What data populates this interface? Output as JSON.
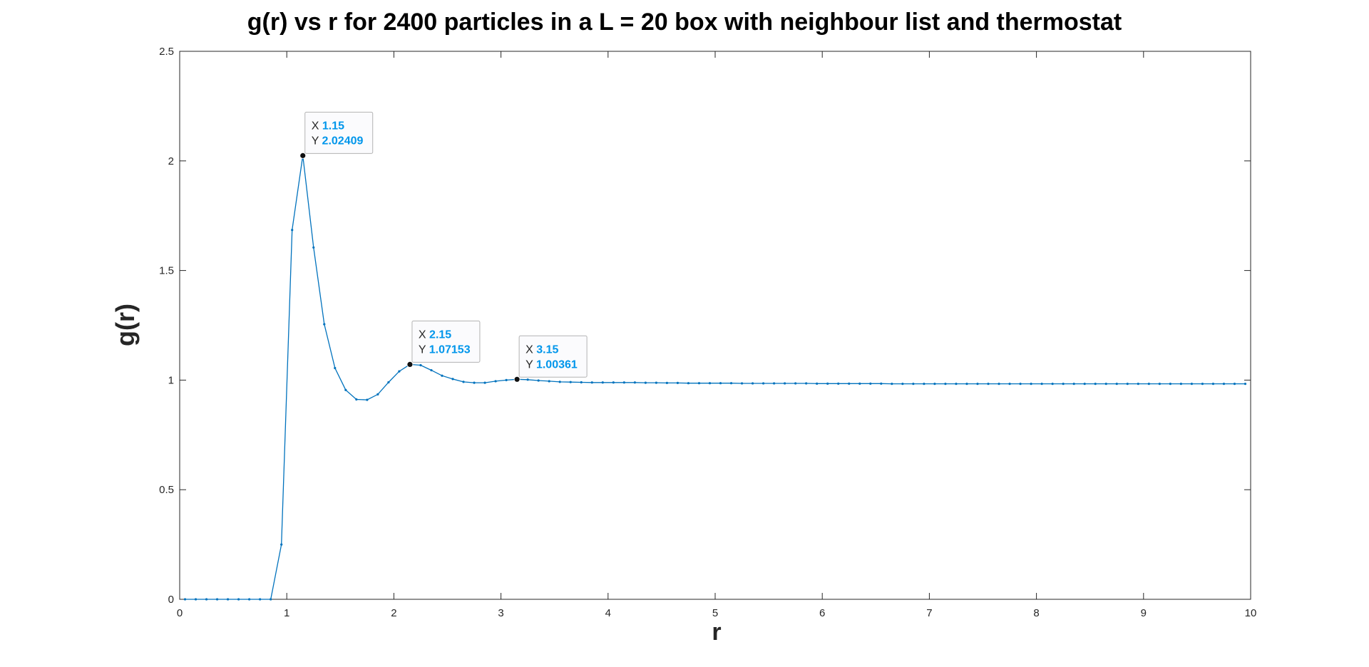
{
  "chart_data": {
    "type": "line",
    "title": "g(r) vs r for 2400 particles in a L = 20 box with neighbour list and thermostat",
    "xlabel": "r",
    "ylabel": "g(r)",
    "xlim": [
      0,
      10
    ],
    "ylim": [
      0,
      2.5
    ],
    "xticks": [
      "0",
      "1",
      "2",
      "3",
      "4",
      "5",
      "6",
      "7",
      "8",
      "9",
      "10"
    ],
    "yticks": [
      "0",
      "0.5",
      "1",
      "1.5",
      "2",
      "2.5"
    ],
    "grid": false,
    "legend": "none",
    "series_color": "#0072BD",
    "x": [
      0.05,
      0.15,
      0.25,
      0.35,
      0.45,
      0.55,
      0.65,
      0.75,
      0.85,
      0.95,
      1.05,
      1.15,
      1.25,
      1.35,
      1.45,
      1.55,
      1.65,
      1.75,
      1.85,
      1.95,
      2.05,
      2.15,
      2.25,
      2.35,
      2.45,
      2.55,
      2.65,
      2.75,
      2.85,
      2.95,
      3.05,
      3.15,
      3.25,
      3.35,
      3.45,
      3.55,
      3.65,
      3.75,
      3.85,
      3.95,
      4.05,
      4.15,
      4.25,
      4.35,
      4.45,
      4.55,
      4.65,
      4.75,
      4.85,
      4.95,
      5.05,
      5.15,
      5.25,
      5.35,
      5.45,
      5.55,
      5.65,
      5.75,
      5.85,
      5.95,
      6.05,
      6.15,
      6.25,
      6.35,
      6.45,
      6.55,
      6.65,
      6.75,
      6.85,
      6.95,
      7.05,
      7.15,
      7.25,
      7.35,
      7.45,
      7.55,
      7.65,
      7.75,
      7.85,
      7.95,
      8.05,
      8.15,
      8.25,
      8.35,
      8.45,
      8.55,
      8.65,
      8.75,
      8.85,
      8.95,
      9.05,
      9.15,
      9.25,
      9.35,
      9.45,
      9.55,
      9.65,
      9.75,
      9.85,
      9.95
    ],
    "y": [
      0,
      0,
      0,
      0,
      0,
      0,
      0,
      0,
      0,
      0.25,
      1.685,
      2.02409,
      1.605,
      1.255,
      1.055,
      0.955,
      0.912,
      0.91,
      0.935,
      0.99,
      1.04,
      1.07153,
      1.068,
      1.045,
      1.02,
      1.005,
      0.992,
      0.988,
      0.988,
      0.995,
      1.0,
      1.00361,
      1.002,
      0.998,
      0.995,
      0.992,
      0.991,
      0.99,
      0.989,
      0.989,
      0.989,
      0.989,
      0.989,
      0.988,
      0.988,
      0.987,
      0.987,
      0.986,
      0.986,
      0.986,
      0.986,
      0.986,
      0.985,
      0.985,
      0.985,
      0.985,
      0.985,
      0.985,
      0.985,
      0.984,
      0.984,
      0.984,
      0.984,
      0.984,
      0.984,
      0.984,
      0.983,
      0.983,
      0.983,
      0.983,
      0.983,
      0.983,
      0.983,
      0.983,
      0.983,
      0.983,
      0.983,
      0.983,
      0.983,
      0.983,
      0.983,
      0.983,
      0.983,
      0.983,
      0.983,
      0.983,
      0.983,
      0.983,
      0.983,
      0.983,
      0.983,
      0.983,
      0.983,
      0.983,
      0.983,
      0.983,
      0.983,
      0.983,
      0.983,
      0.983
    ],
    "annotations": [
      {
        "x_label": "X",
        "y_label": "Y",
        "x_text": "1.15",
        "y_text": "2.02409",
        "x": 1.15,
        "y": 2.02409
      },
      {
        "x_label": "X",
        "y_label": "Y",
        "x_text": "2.15",
        "y_text": "1.07153",
        "x": 2.15,
        "y": 1.07153
      },
      {
        "x_label": "X",
        "y_label": "Y",
        "x_text": "3.15",
        "y_text": "1.00361",
        "x": 3.15,
        "y": 1.00361
      }
    ]
  }
}
